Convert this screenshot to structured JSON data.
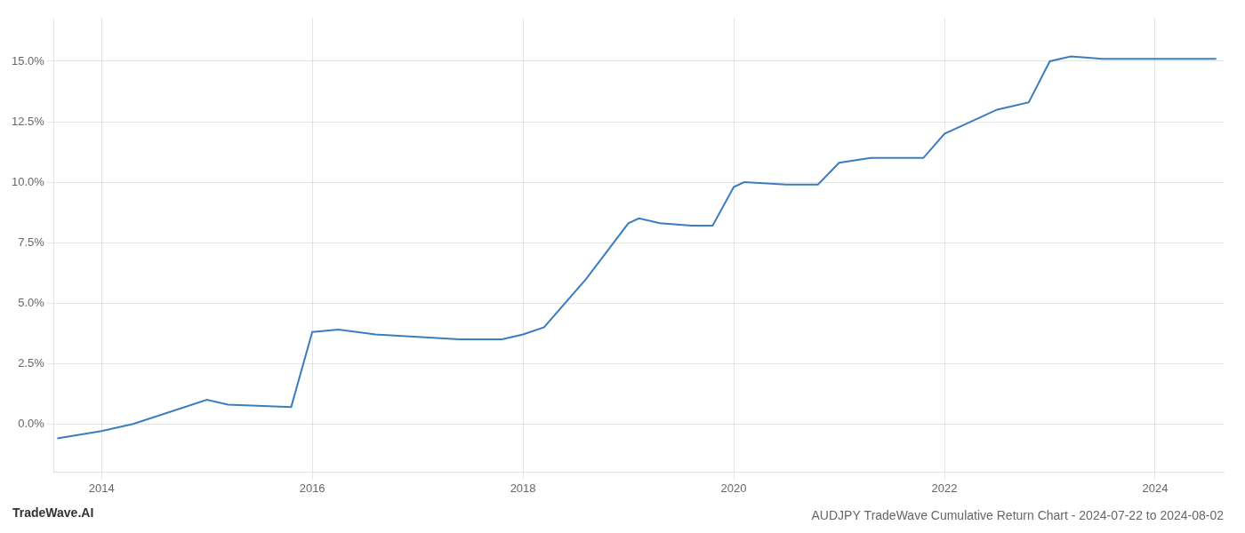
{
  "chart_data": {
    "type": "line",
    "title": "AUDJPY TradeWave Cumulative Return Chart - 2024-07-22 to 2024-08-02",
    "annotations": [
      "TradeWave.AI"
    ],
    "x": [
      2013.58,
      2014.0,
      2014.3,
      2015.0,
      2015.2,
      2015.8,
      2016.0,
      2016.25,
      2016.6,
      2017.0,
      2017.4,
      2017.8,
      2018.0,
      2018.2,
      2018.6,
      2019.0,
      2019.1,
      2019.3,
      2019.6,
      2019.8,
      2020.0,
      2020.1,
      2020.5,
      2020.8,
      2021.0,
      2021.3,
      2021.8,
      2022.0,
      2022.5,
      2022.8,
      2023.0,
      2023.2,
      2023.5,
      2024.0,
      2024.58
    ],
    "values": [
      -0.006,
      -0.003,
      0.0,
      0.01,
      0.008,
      0.007,
      0.038,
      0.039,
      0.037,
      0.036,
      0.035,
      0.035,
      0.037,
      0.04,
      0.06,
      0.083,
      0.085,
      0.083,
      0.082,
      0.082,
      0.098,
      0.1,
      0.099,
      0.099,
      0.108,
      0.11,
      0.11,
      0.12,
      0.13,
      0.133,
      0.15,
      0.152,
      0.151,
      0.151,
      0.151
    ],
    "color": "#3a7ebf",
    "xlim": [
      2013.55,
      2024.65
    ],
    "xticks": [
      2014,
      2016,
      2018,
      2020,
      2022,
      2024
    ],
    "ylim": [
      -0.02,
      0.168
    ],
    "yticks": [
      {
        "value": 0.0,
        "label": "0.0%"
      },
      {
        "value": 0.025,
        "label": "2.5%"
      },
      {
        "value": 0.05,
        "label": "5.0%"
      },
      {
        "value": 0.075,
        "label": "7.5%"
      },
      {
        "value": 0.1,
        "label": "10.0%"
      },
      {
        "value": 0.125,
        "label": "12.5%"
      },
      {
        "value": 0.15,
        "label": "15.0%"
      }
    ],
    "grid": true,
    "legend": false
  }
}
